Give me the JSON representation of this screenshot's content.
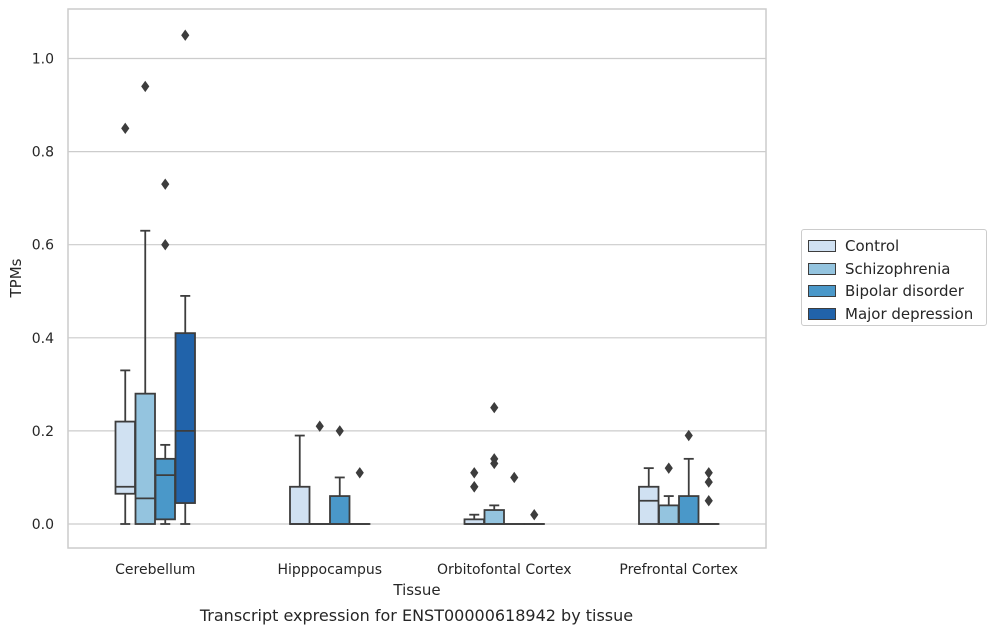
{
  "chart_data": {
    "type": "box",
    "title": "Transcript expression for ENST00000618942 by tissue",
    "xlabel": "Tissue",
    "ylabel": "TPMs",
    "ylim": [
      -0.05,
      1.1
    ],
    "yticks": [
      "0.0",
      "0.2",
      "0.4",
      "0.6",
      "0.8",
      "1.0"
    ],
    "ytick_values": [
      0.0,
      0.2,
      0.4,
      0.6,
      0.8,
      1.0
    ],
    "categories": [
      "Cerebellum",
      "Hipppocampus",
      "Orbitofontal Cortex",
      "Prefrontal Cortex"
    ],
    "grid": "horizontal",
    "legend_position": "right",
    "series": [
      {
        "name": "Control",
        "color": "#d0e1f2",
        "boxes": [
          {
            "q1": 0.065,
            "median": 0.08,
            "q3": 0.22,
            "whisker_low": 0.0,
            "whisker_high": 0.33,
            "outliers": [
              0.85
            ]
          },
          {
            "q1": 0.0,
            "median": 0.0,
            "q3": 0.08,
            "whisker_low": 0.0,
            "whisker_high": 0.19,
            "outliers": []
          },
          {
            "q1": 0.0,
            "median": 0.0,
            "q3": 0.01,
            "whisker_low": 0.0,
            "whisker_high": 0.02,
            "outliers": [
              0.08,
              0.08,
              0.11
            ]
          },
          {
            "q1": 0.0,
            "median": 0.05,
            "q3": 0.08,
            "whisker_low": 0.0,
            "whisker_high": 0.12,
            "outliers": []
          }
        ]
      },
      {
        "name": "Schizophrenia",
        "color": "#94c4df",
        "boxes": [
          {
            "q1": 0.0,
            "median": 0.055,
            "q3": 0.28,
            "whisker_low": 0.0,
            "whisker_high": 0.63,
            "outliers": [
              0.94
            ]
          },
          {
            "q1": 0.0,
            "median": 0.0,
            "q3": 0.0,
            "whisker_low": 0.0,
            "whisker_high": 0.0,
            "outliers": [
              0.21
            ]
          },
          {
            "q1": 0.0,
            "median": 0.0,
            "q3": 0.03,
            "whisker_low": 0.0,
            "whisker_high": 0.04,
            "outliers": [
              0.13,
              0.14,
              0.25
            ]
          },
          {
            "q1": 0.0,
            "median": 0.0,
            "q3": 0.04,
            "whisker_low": 0.0,
            "whisker_high": 0.06,
            "outliers": [
              0.12
            ]
          }
        ]
      },
      {
        "name": "Bipolar disorder",
        "color": "#4a98c9",
        "boxes": [
          {
            "q1": 0.01,
            "median": 0.105,
            "q3": 0.14,
            "whisker_low": 0.0,
            "whisker_high": 0.17,
            "outliers": [
              0.6,
              0.73
            ]
          },
          {
            "q1": 0.0,
            "median": 0.0,
            "q3": 0.06,
            "whisker_low": 0.0,
            "whisker_high": 0.1,
            "outliers": [
              0.2
            ]
          },
          {
            "q1": 0.0,
            "median": 0.0,
            "q3": 0.0,
            "whisker_low": 0.0,
            "whisker_high": 0.0,
            "outliers": [
              0.1
            ]
          },
          {
            "q1": 0.0,
            "median": 0.0,
            "q3": 0.06,
            "whisker_low": 0.0,
            "whisker_high": 0.14,
            "outliers": [
              0.19
            ]
          }
        ]
      },
      {
        "name": "Major depression",
        "color": "#2163aa",
        "boxes": [
          {
            "q1": 0.045,
            "median": 0.2,
            "q3": 0.41,
            "whisker_low": 0.0,
            "whisker_high": 0.49,
            "outliers": [
              1.05
            ]
          },
          {
            "q1": 0.0,
            "median": 0.0,
            "q3": 0.0,
            "whisker_low": 0.0,
            "whisker_high": 0.0,
            "outliers": [
              0.11
            ]
          },
          {
            "q1": 0.0,
            "median": 0.0,
            "q3": 0.0,
            "whisker_low": 0.0,
            "whisker_high": 0.0,
            "outliers": [
              0.02
            ]
          },
          {
            "q1": 0.0,
            "median": 0.0,
            "q3": 0.0,
            "whisker_low": 0.0,
            "whisker_high": 0.0,
            "outliers": [
              0.05,
              0.09,
              0.11
            ]
          }
        ]
      }
    ]
  }
}
